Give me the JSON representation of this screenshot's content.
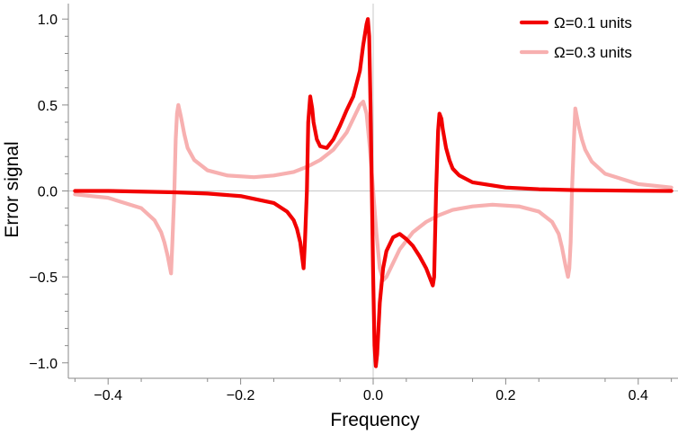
{
  "chart_data": {
    "type": "line",
    "xlabel": "Frequency",
    "ylabel": "Error signal",
    "xlim": [
      -0.46,
      0.46
    ],
    "ylim": [
      -1.09,
      1.09
    ],
    "x_ticks": [
      -0.4,
      -0.2,
      0.0,
      0.2,
      0.4
    ],
    "x_tick_labels": [
      "−0.4",
      "−0.2",
      "0.0",
      "0.2",
      "0.4"
    ],
    "y_ticks": [
      -1.0,
      -0.5,
      0.0,
      0.5,
      1.0
    ],
    "y_tick_labels": [
      "−1.0",
      "−0.5",
      "0.0",
      "0.5",
      "1.0"
    ],
    "grid": false,
    "zero_lines": true,
    "legend_position": "top-right",
    "series": [
      {
        "name": "Ω=0.1 units",
        "color": "#f20000",
        "x": [
          -0.45,
          -0.4,
          -0.35,
          -0.3,
          -0.25,
          -0.2,
          -0.15,
          -0.13,
          -0.12,
          -0.115,
          -0.11,
          -0.105,
          -0.103,
          -0.1,
          -0.098,
          -0.095,
          -0.092,
          -0.09,
          -0.085,
          -0.08,
          -0.07,
          -0.06,
          -0.05,
          -0.04,
          -0.03,
          -0.02,
          -0.015,
          -0.01,
          -0.008,
          -0.006,
          -0.004,
          -0.002,
          0.0,
          0.002,
          0.004,
          0.006,
          0.008,
          0.01,
          0.015,
          0.02,
          0.03,
          0.04,
          0.05,
          0.06,
          0.07,
          0.08,
          0.085,
          0.09,
          0.092,
          0.095,
          0.098,
          0.1,
          0.103,
          0.105,
          0.11,
          0.115,
          0.12,
          0.13,
          0.15,
          0.2,
          0.25,
          0.3,
          0.35,
          0.4,
          0.45
        ],
        "y": [
          0.0,
          0.0,
          -0.004,
          -0.008,
          -0.015,
          -0.03,
          -0.07,
          -0.12,
          -0.17,
          -0.22,
          -0.3,
          -0.45,
          -0.3,
          0.0,
          0.4,
          0.55,
          0.48,
          0.4,
          0.3,
          0.26,
          0.25,
          0.3,
          0.38,
          0.47,
          0.55,
          0.7,
          0.85,
          0.97,
          1.0,
          0.9,
          0.5,
          0.0,
          -0.5,
          -0.9,
          -1.02,
          -0.95,
          -0.8,
          -0.65,
          -0.45,
          -0.35,
          -0.27,
          -0.25,
          -0.28,
          -0.32,
          -0.38,
          -0.45,
          -0.5,
          -0.55,
          -0.5,
          0.0,
          0.35,
          0.45,
          0.42,
          0.36,
          0.25,
          0.18,
          0.13,
          0.09,
          0.05,
          0.02,
          0.01,
          0.005,
          0.003,
          0.001,
          0.0
        ]
      },
      {
        "name": "Ω=0.3 units",
        "color": "#f7b0b0",
        "x": [
          -0.45,
          -0.4,
          -0.35,
          -0.33,
          -0.32,
          -0.315,
          -0.31,
          -0.305,
          -0.303,
          -0.3,
          -0.298,
          -0.296,
          -0.294,
          -0.29,
          -0.285,
          -0.28,
          -0.27,
          -0.25,
          -0.22,
          -0.18,
          -0.15,
          -0.12,
          -0.1,
          -0.08,
          -0.06,
          -0.04,
          -0.03,
          -0.02,
          -0.015,
          -0.01,
          -0.005,
          0.0,
          0.005,
          0.01,
          0.015,
          0.02,
          0.03,
          0.04,
          0.06,
          0.08,
          0.1,
          0.12,
          0.15,
          0.18,
          0.22,
          0.25,
          0.27,
          0.28,
          0.285,
          0.29,
          0.294,
          0.296,
          0.298,
          0.3,
          0.303,
          0.305,
          0.31,
          0.315,
          0.32,
          0.33,
          0.35,
          0.4,
          0.45
        ],
        "y": [
          -0.02,
          -0.04,
          -0.1,
          -0.17,
          -0.24,
          -0.3,
          -0.38,
          -0.48,
          -0.3,
          0.0,
          0.3,
          0.45,
          0.5,
          0.43,
          0.33,
          0.25,
          0.18,
          0.12,
          0.09,
          0.08,
          0.09,
          0.11,
          0.14,
          0.18,
          0.24,
          0.34,
          0.42,
          0.5,
          0.52,
          0.45,
          0.25,
          0.0,
          -0.25,
          -0.45,
          -0.52,
          -0.5,
          -0.42,
          -0.34,
          -0.24,
          -0.18,
          -0.14,
          -0.11,
          -0.09,
          -0.08,
          -0.09,
          -0.12,
          -0.18,
          -0.25,
          -0.33,
          -0.43,
          -0.5,
          -0.45,
          -0.3,
          0.0,
          0.3,
          0.48,
          0.38,
          0.3,
          0.24,
          0.17,
          0.1,
          0.04,
          0.02
        ]
      }
    ]
  }
}
